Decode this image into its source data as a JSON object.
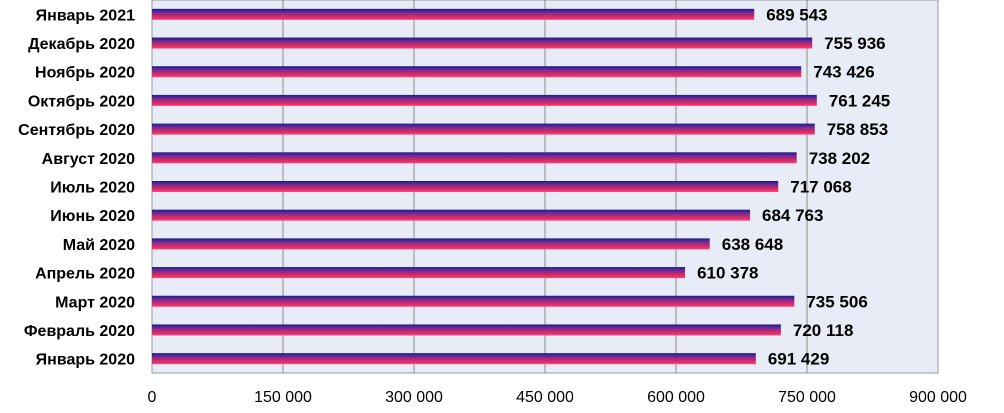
{
  "colors": {
    "plot_background": "#e8ecf6",
    "plot_border": "#9a9a9a",
    "grid": "#8c8c8c",
    "bar_gradient": [
      "#1a1a8a",
      "#6a2a9a",
      "#c02a6a",
      "#e8306a",
      "#ff4a80"
    ]
  },
  "chart_data": {
    "type": "bar",
    "orientation": "horizontal",
    "categories": [
      "Январь 2021",
      "Декабрь 2020",
      "Ноябрь 2020",
      "Октябрь 2020",
      "Сентябрь 2020",
      "Август 2020",
      "Июль 2020",
      "Июнь 2020",
      "Май 2020",
      "Апрель 2020",
      "Март 2020",
      "Февраль 2020",
      "Январь 2020"
    ],
    "values": [
      689543,
      755936,
      743426,
      761245,
      758853,
      738202,
      717068,
      684763,
      638648,
      610378,
      735506,
      720118,
      691429
    ],
    "value_labels": [
      "689 543",
      "755 936",
      "743 426",
      "761 245",
      "758 853",
      "738 202",
      "717 068",
      "684 763",
      "638 648",
      "610 378",
      "735 506",
      "720 118",
      "691 429"
    ],
    "xlim": [
      0,
      900000
    ],
    "x_ticks": [
      0,
      150000,
      300000,
      450000,
      600000,
      750000,
      900000
    ],
    "x_tick_labels": [
      "0",
      "150 000",
      "300 000",
      "450 000",
      "600 000",
      "750 000",
      "900 000"
    ],
    "grid": true,
    "legend": "none",
    "title": "",
    "xlabel": "",
    "ylabel": ""
  }
}
